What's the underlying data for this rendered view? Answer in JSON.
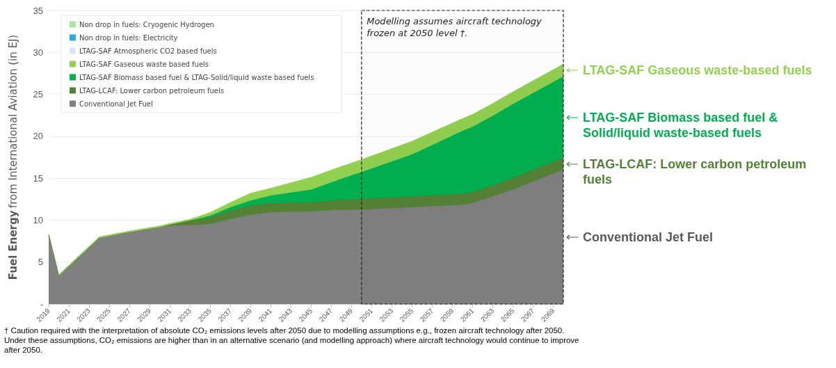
{
  "chart_data": {
    "type": "area",
    "stacked": true,
    "ylabel": "Fuel Energy from International Aviation (in EJ)",
    "x": [
      2019,
      2020,
      2024,
      2027,
      2030,
      2031,
      2033,
      2034,
      2035,
      2037,
      2039,
      2041,
      2045,
      2048,
      2050,
      2055,
      2060,
      2061,
      2063,
      2065,
      2070
    ],
    "xlim": [
      2019,
      2070
    ],
    "xticks": [
      2019,
      2021,
      2023,
      2025,
      2027,
      2029,
      2031,
      2033,
      2035,
      2037,
      2039,
      2041,
      2043,
      2045,
      2047,
      2049,
      2051,
      2053,
      2055,
      2057,
      2059,
      2061,
      2063,
      2065,
      2067,
      2069
    ],
    "ylim": [
      0,
      35
    ],
    "yticks": [
      {
        "value": 0,
        "label": "-"
      },
      5,
      10,
      15,
      20,
      25,
      30,
      35
    ],
    "grid": "y",
    "legend": "top left",
    "marker": "none",
    "series": [
      {
        "name": "Conventional Jet Fuel",
        "color": "#808080",
        "values": [
          8.2,
          3.3,
          7.8,
          8.5,
          9.1,
          9.3,
          9.4,
          9.4,
          9.5,
          10.1,
          10.6,
          10.9,
          11.0,
          11.2,
          11.2,
          11.5,
          11.8,
          12.0,
          12.8,
          13.6,
          16.0
        ]
      },
      {
        "name": "LTAG-LCAF: Lower carbon petroleum fuels",
        "color": "#548235",
        "values": [
          0,
          0,
          0,
          0,
          0,
          0.1,
          0.5,
          0.7,
          0.8,
          1.0,
          1.1,
          1.1,
          1.1,
          1.2,
          1.3,
          1.3,
          1.3,
          1.3,
          1.3,
          1.4,
          1.4
        ]
      },
      {
        "name": "LTAG-SAF Biomass based fuel & LTAG-Solid/liquid waste based fuels",
        "color": "#00b050",
        "values": [
          0,
          0,
          0,
          0,
          0,
          0,
          0,
          0.1,
          0.2,
          0.4,
          0.6,
          0.9,
          1.5,
          2.5,
          3.2,
          5.0,
          7.5,
          7.8,
          8.3,
          8.8,
          9.7
        ]
      },
      {
        "name": "LTAG-SAF Gaseous waste based fuels",
        "color": "#92d050",
        "values": [
          0.2,
          0.2,
          0.2,
          0.2,
          0.2,
          0.2,
          0.2,
          0.3,
          0.4,
          0.6,
          0.9,
          0.9,
          1.5,
          1.5,
          1.5,
          1.6,
          1.5,
          1.5,
          1.5,
          1.5,
          1.5
        ]
      },
      {
        "name": "LTAG-SAF Atmospheric CO2 based fuels",
        "color": "#dae8f5",
        "values": [
          null,
          null,
          null,
          null,
          null,
          null,
          null,
          null,
          null,
          null,
          null,
          null,
          null,
          null,
          null,
          null,
          null,
          null,
          null,
          null,
          null
        ]
      },
      {
        "name": "Non drop in fuels: Electricity",
        "color": "#2ea8e0",
        "values": [
          null,
          null,
          null,
          null,
          null,
          null,
          null,
          null,
          null,
          null,
          null,
          null,
          null,
          null,
          null,
          null,
          null,
          null,
          null,
          null,
          null
        ]
      },
      {
        "name": "Non drop in fuels: Cryogenic Hydrogen",
        "color": "#a8e6a0",
        "values": [
          null,
          null,
          null,
          null,
          null,
          null,
          null,
          null,
          null,
          null,
          null,
          null,
          null,
          null,
          null,
          null,
          null,
          null,
          null,
          null,
          null
        ]
      }
    ],
    "bands": [
      {
        "axis": "x",
        "from": 2050,
        "to": 2070,
        "label": "Modelling assumes aircraft technology frozen at 2050 level †."
      }
    ],
    "annotations": [
      "LTAG-SAF Gaseous waste-based fuels",
      "LTAG-SAF Biomass based fuel & Solid/liquid waste-based fuels",
      "LTAG-LCAF: Lower carbon petroleum fuels",
      "Conventional Jet Fuel",
      "† Caution required with the interpretation of absolute CO₂ emissions levels after 2050 due to modelling assumptions e.g., frozen aircraft technology after 2050. Under these assumptions, CO₂ emissions are higher than in an alternative scenario (and modelling approach) where aircraft technology would continue to improve after 2050."
    ]
  }
}
